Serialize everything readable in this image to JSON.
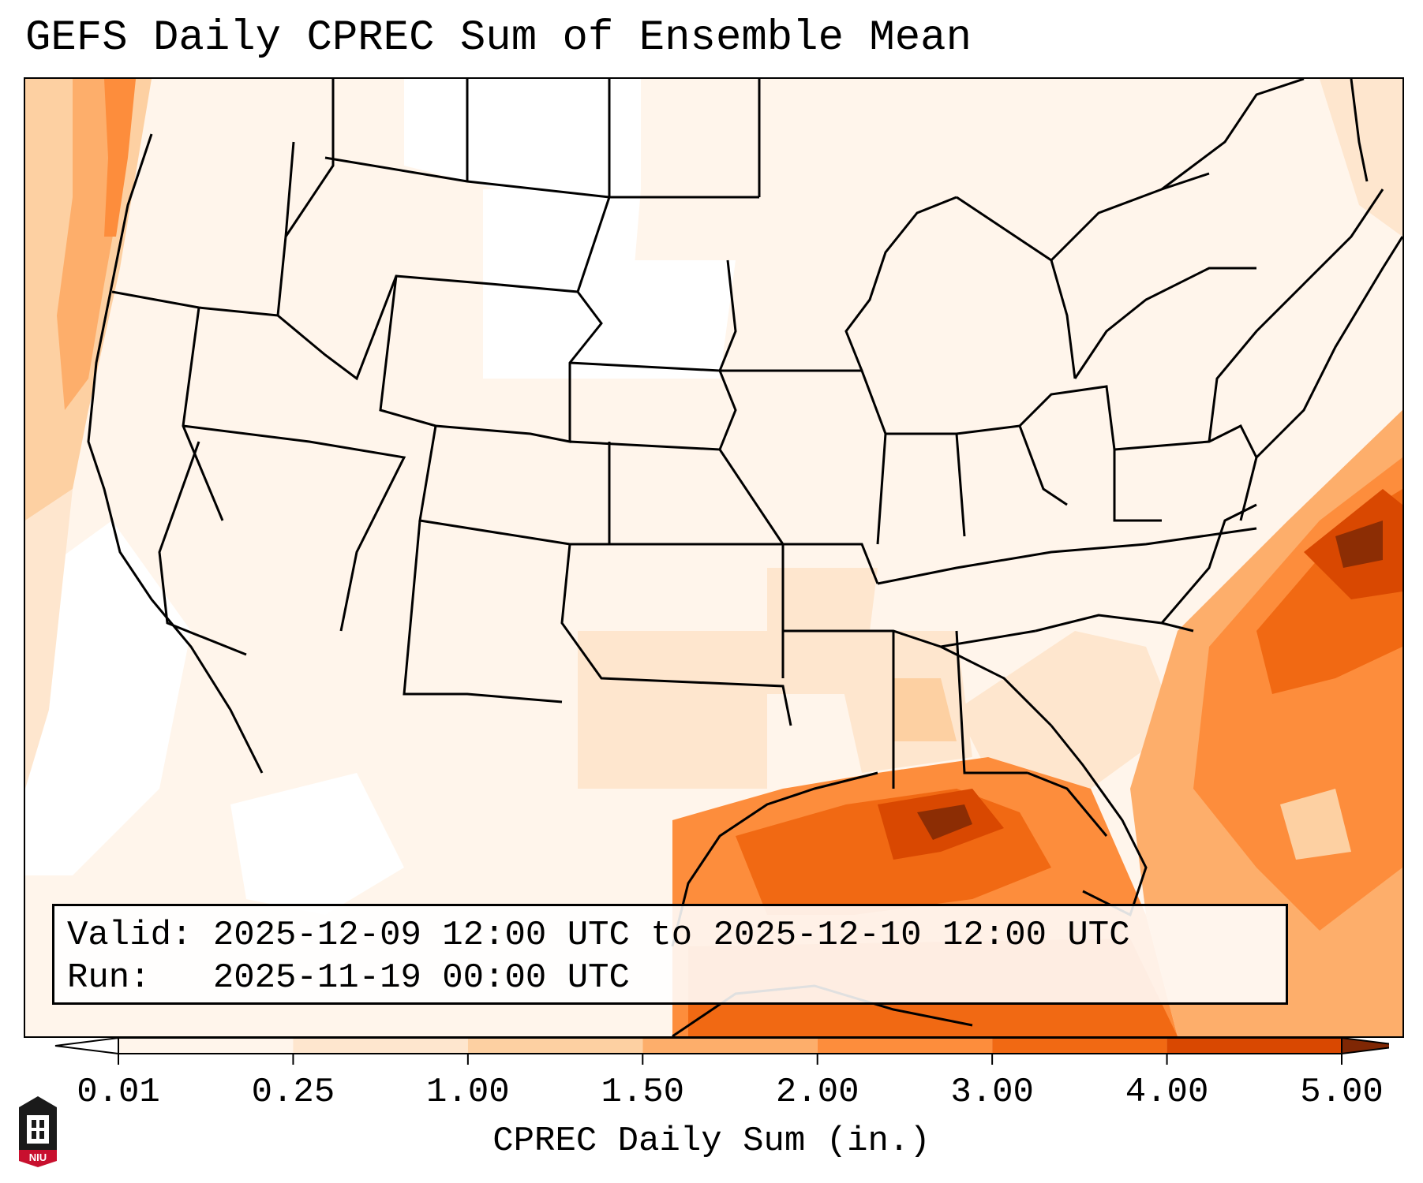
{
  "title": "GEFS Daily CPREC Sum of Ensemble Mean",
  "info": {
    "valid": "Valid: 2025-12-09 12:00 UTC to 2025-12-10 12:00 UTC",
    "run": "Run:   2025-11-19 00:00 UTC"
  },
  "colorbar": {
    "label": "CPREC Daily Sum (in.)",
    "ticks": [
      "0.01",
      "0.25",
      "1.00",
      "1.50",
      "2.00",
      "3.00",
      "4.00",
      "5.00"
    ],
    "colors": [
      "#fff5eb",
      "#fee6ce",
      "#fdd0a2",
      "#fdae6b",
      "#fd8d3c",
      "#f16913",
      "#d94801",
      "#8c2d04"
    ],
    "under_color": "#ffffff",
    "over_color": "#7f2704"
  },
  "logo": {
    "icon": "niu-logo-icon",
    "text": "NIU",
    "color": "#c8102e"
  }
}
